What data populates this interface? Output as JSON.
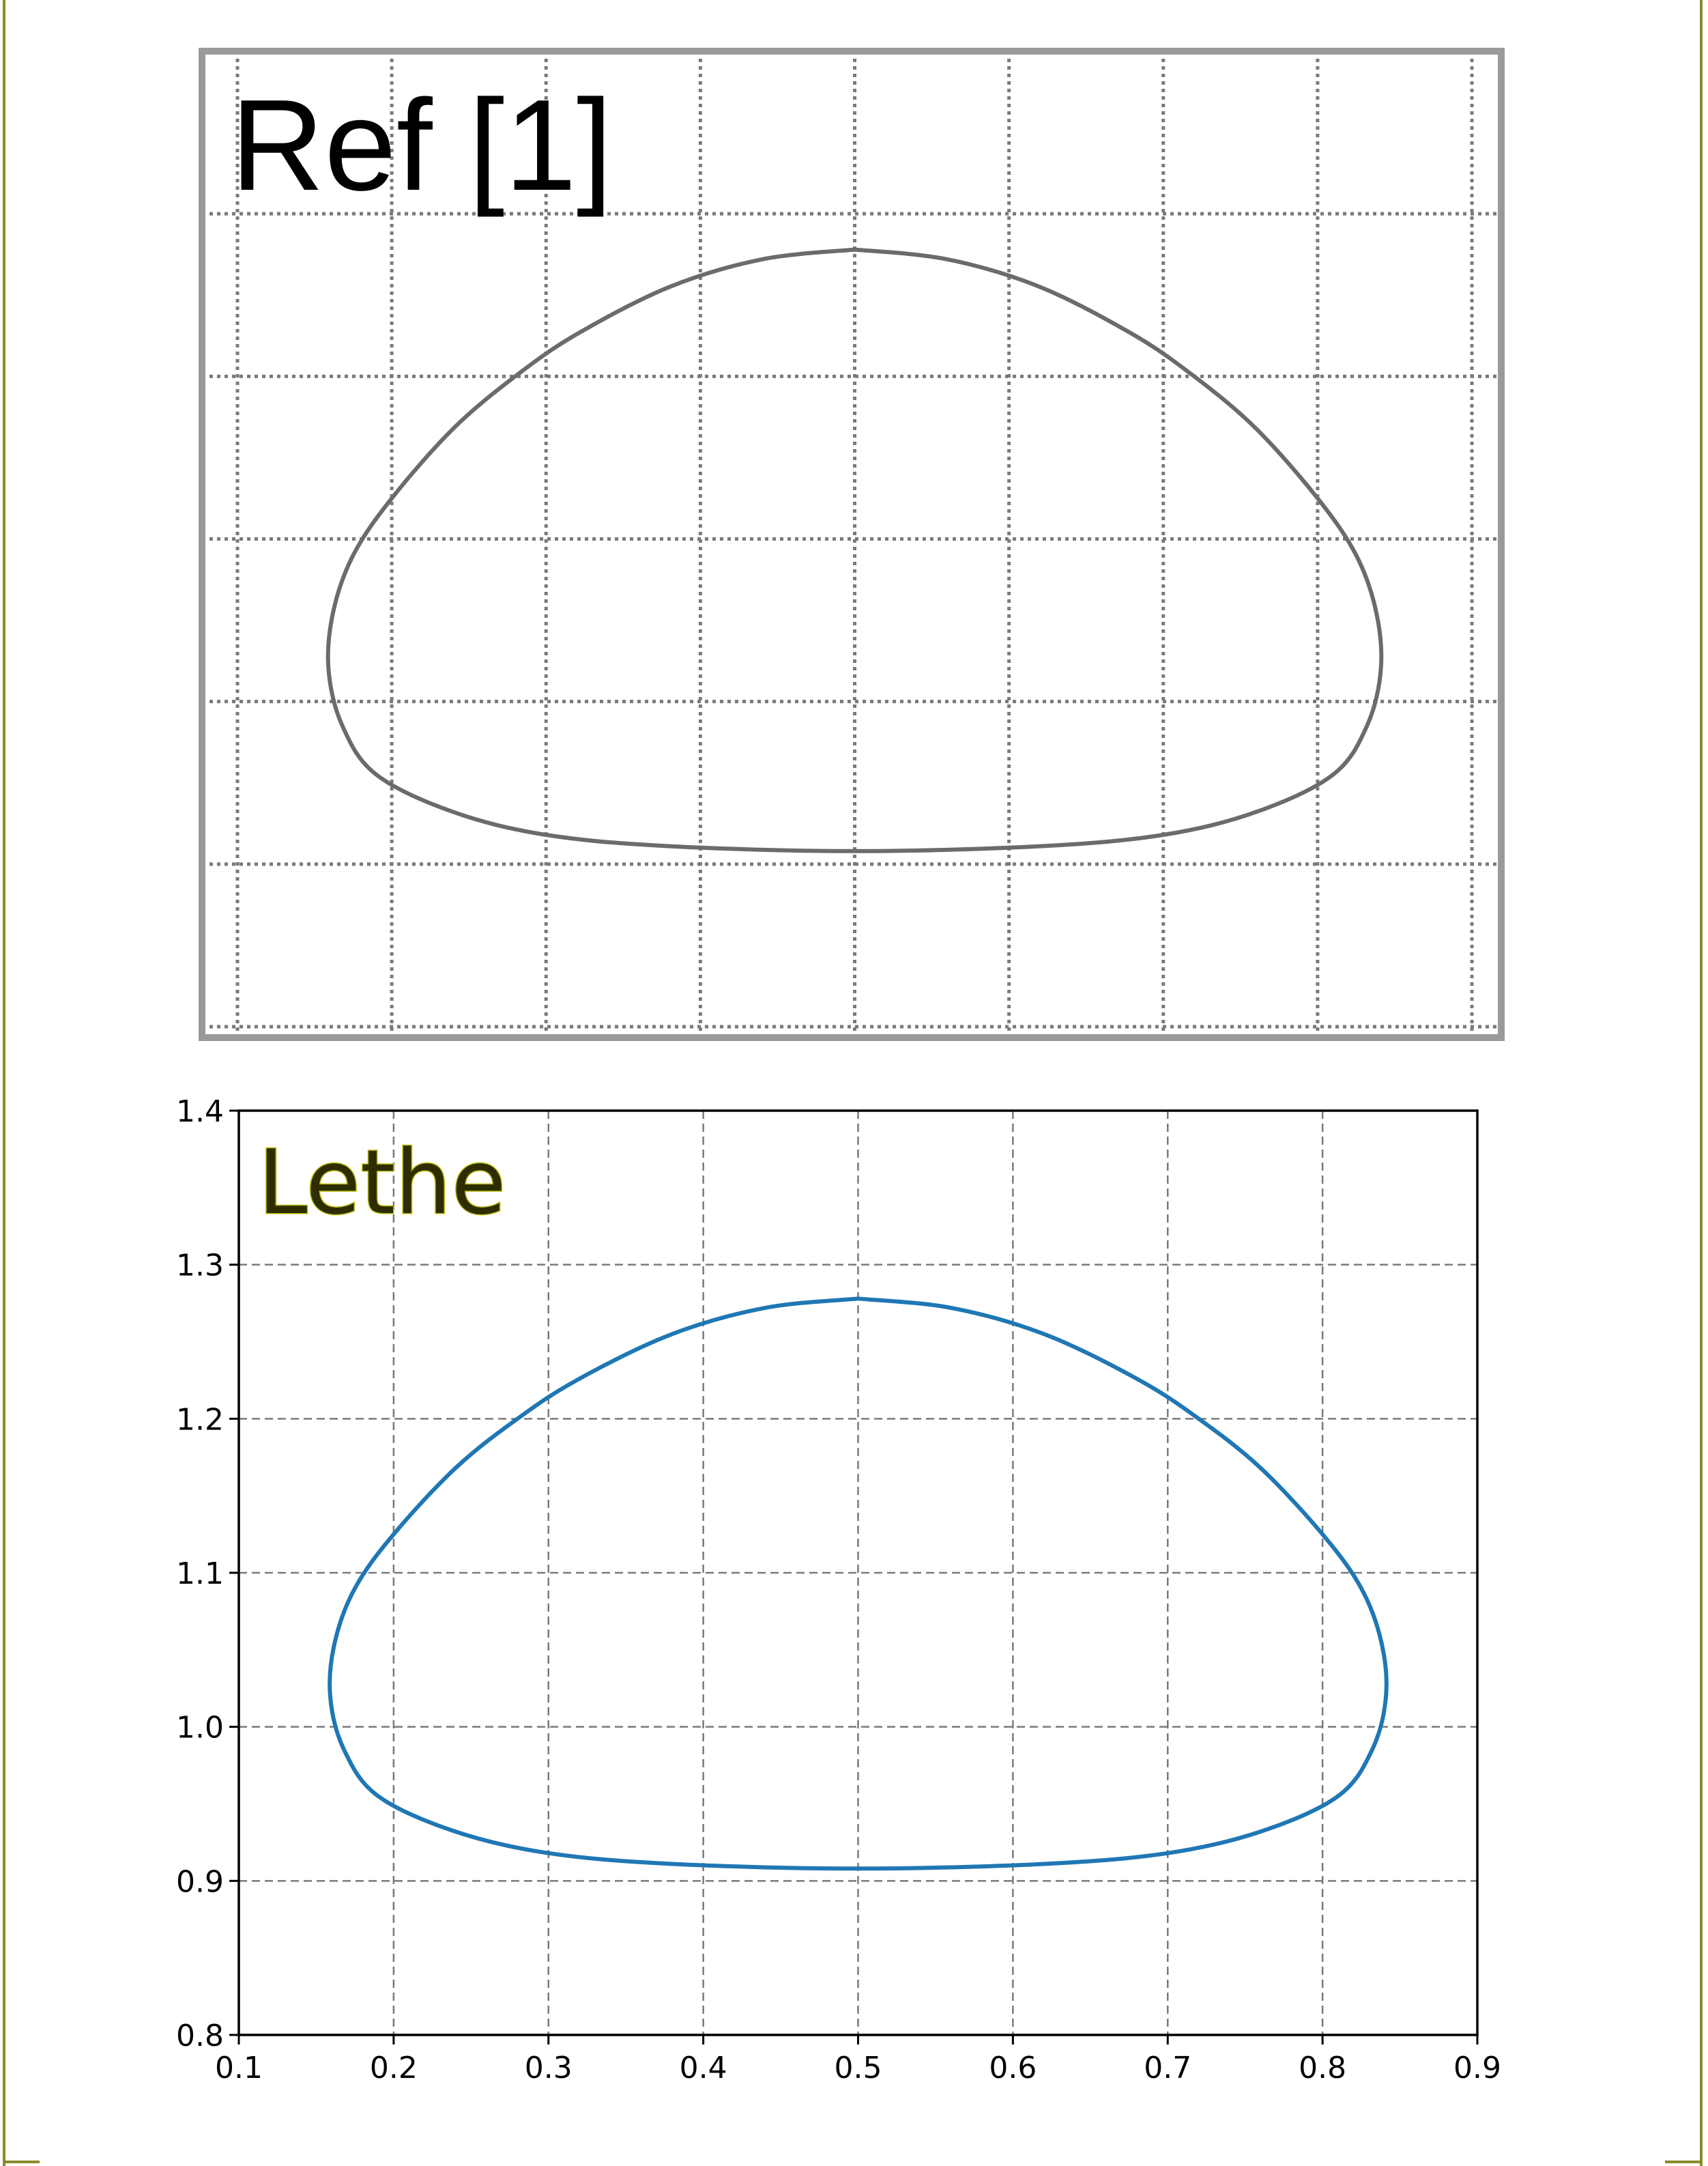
{
  "colors": {
    "frame": "#8a8a2a",
    "ref_curve": "#6b6b6b",
    "lethe_curve": "#1f77b4",
    "grid": "#7a7a7a"
  },
  "chart_data": [
    {
      "type": "line",
      "title": "Ref [1]",
      "grid": true,
      "xlim": [
        0.1,
        0.9
      ],
      "ylim": [
        0.8,
        1.4
      ],
      "series": [
        {
          "x": [],
          "y": []
        }
      ]
    },
    {
      "type": "line",
      "title": "Lethe",
      "grid": true,
      "xlim": [
        0.1,
        0.9
      ],
      "ylim": [
        0.8,
        1.4
      ],
      "x_ticks": [
        "0.1",
        "0.2",
        "0.3",
        "0.4",
        "0.5",
        "0.6",
        "0.7",
        "0.8",
        "0.9"
      ],
      "y_ticks": [
        "0.8",
        "0.9",
        "1.0",
        "1.1",
        "1.2",
        "1.3",
        "1.4"
      ],
      "series": [
        {
          "x": [],
          "y": []
        }
      ]
    }
  ],
  "shape_points": [
    [
      0.5,
      1.278
    ],
    [
      0.56,
      1.272
    ],
    [
      0.62,
      1.255
    ],
    [
      0.68,
      1.226
    ],
    [
      0.72,
      1.2
    ],
    [
      0.76,
      1.168
    ],
    [
      0.8,
      1.125
    ],
    [
      0.825,
      1.09
    ],
    [
      0.838,
      1.055
    ],
    [
      0.841,
      1.02
    ],
    [
      0.832,
      0.985
    ],
    [
      0.81,
      0.955
    ],
    [
      0.76,
      0.932
    ],
    [
      0.7,
      0.918
    ],
    [
      0.62,
      0.911
    ],
    [
      0.5,
      0.908
    ],
    [
      0.38,
      0.911
    ],
    [
      0.3,
      0.918
    ],
    [
      0.24,
      0.932
    ],
    [
      0.19,
      0.955
    ],
    [
      0.168,
      0.985
    ],
    [
      0.159,
      1.02
    ],
    [
      0.162,
      1.055
    ],
    [
      0.175,
      1.09
    ],
    [
      0.2,
      1.125
    ],
    [
      0.24,
      1.168
    ],
    [
      0.28,
      1.2
    ],
    [
      0.32,
      1.226
    ],
    [
      0.38,
      1.255
    ],
    [
      0.44,
      1.272
    ],
    [
      0.5,
      1.278
    ]
  ]
}
